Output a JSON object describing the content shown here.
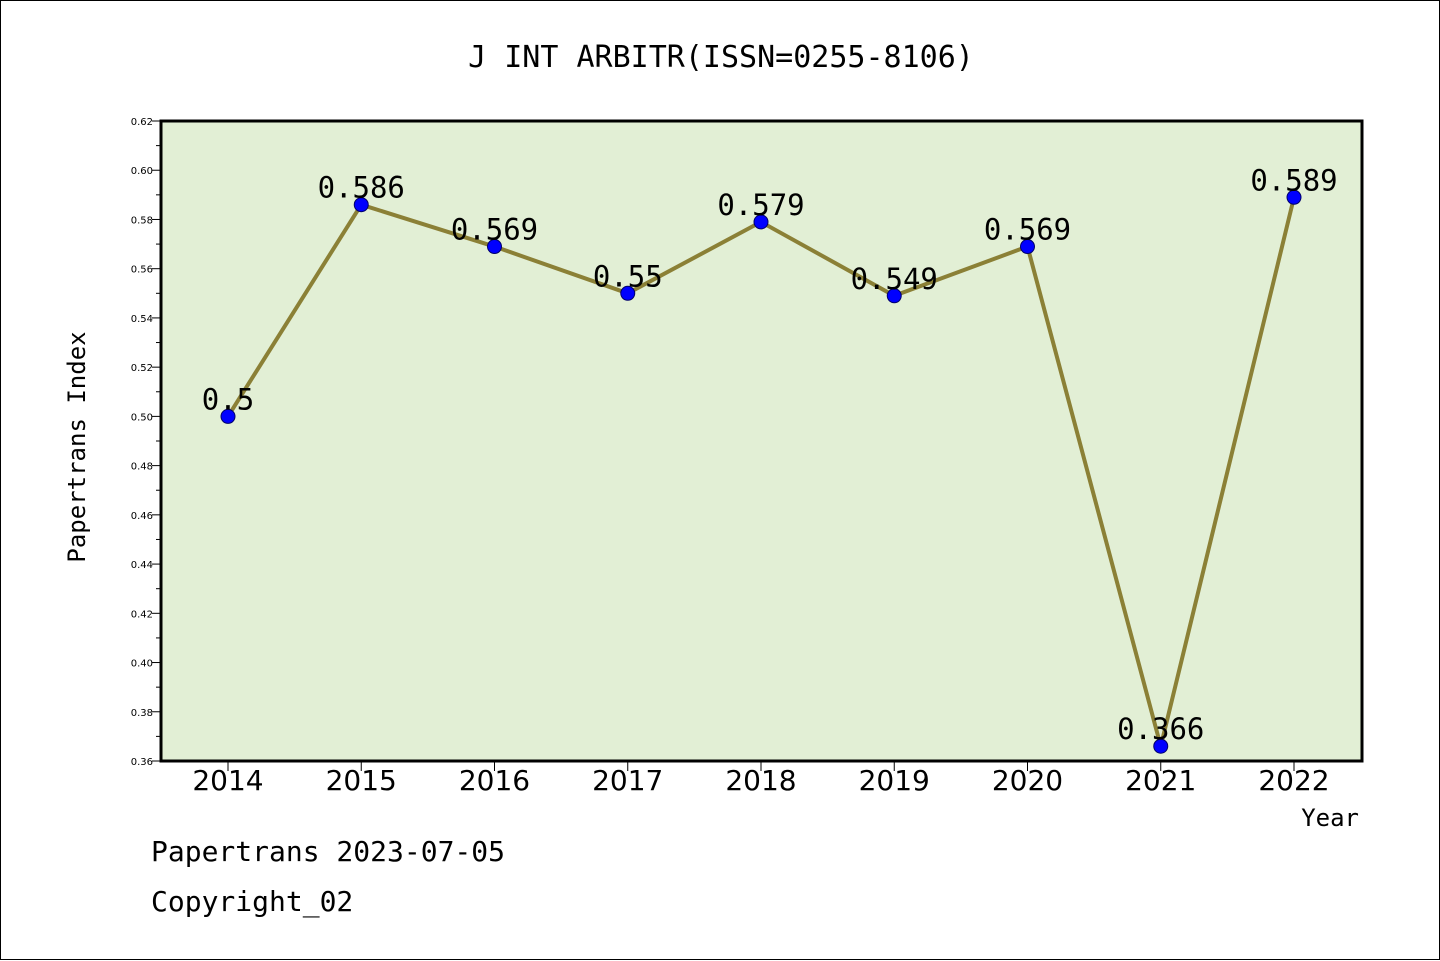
{
  "chart_data": {
    "type": "line",
    "title": "J INT ARBITR(ISSN=0255-8106)",
    "xlabel": "Year",
    "ylabel": "Papertrans Index",
    "categories": [
      "2014",
      "2015",
      "2016",
      "2017",
      "2018",
      "2019",
      "2020",
      "2021",
      "2022"
    ],
    "series": [
      {
        "values": [
          0.5,
          0.586,
          0.569,
          0.55,
          0.579,
          0.549,
          0.569,
          0.366,
          0.589
        ],
        "labels": [
          "0.5",
          "0.586",
          "0.569",
          "0.55",
          "0.579",
          "0.549",
          "0.569",
          "0.366",
          "0.589"
        ]
      }
    ],
    "ylim": [
      0.36,
      0.62
    ],
    "yticks": [
      "0.36",
      "0.38",
      "0.40",
      "0.42",
      "0.44",
      "0.46",
      "0.48",
      "0.50",
      "0.52",
      "0.54",
      "0.56",
      "0.58",
      "0.60",
      "0.62"
    ],
    "grid": false,
    "colors": {
      "line": "#8b8036",
      "marker": "#0000ff",
      "plot_background": "#e2efd5"
    }
  },
  "footer": {
    "date_line": "Papertrans 2023-07-05",
    "copyright": "Copyright_02"
  }
}
